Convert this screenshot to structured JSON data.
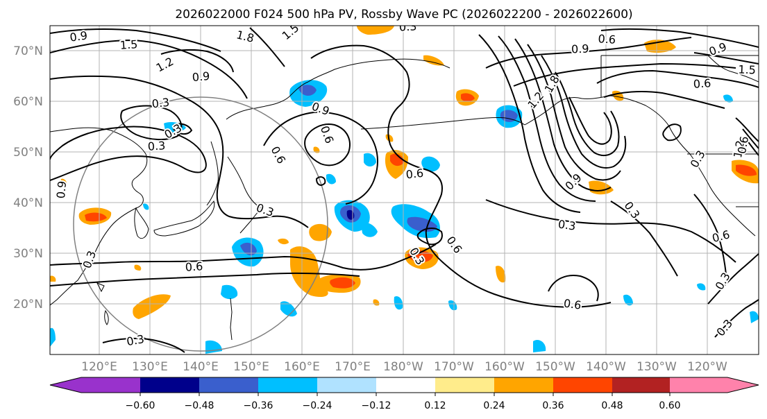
{
  "title": "2026022000 F024 500 hPa PV, Rossby Wave PC (2026022200 - 2026022600)",
  "lat_labels": [
    "70°N",
    "60°N",
    "50°N",
    "40°N",
    "30°N",
    "20°N"
  ],
  "lon_labels": [
    "120°E",
    "130°E",
    "140°E",
    "150°E",
    "160°E",
    "170°E",
    "180°W",
    "170°W",
    "160°W",
    "150°W",
    "140°W",
    "130°W",
    "120°W"
  ],
  "colorbar": {
    "ticks": [
      "−0.60",
      "−0.48",
      "−0.36",
      "−0.24",
      "−0.12",
      "0.12",
      "0.24",
      "0.36",
      "0.48",
      "0.60"
    ],
    "colors": [
      "#9932cc",
      "#00008b",
      "#3a5fcd",
      "#00bfff",
      "#b0e2ff",
      "#ffffff",
      "#ffec8b",
      "#ffa500",
      "#ff4500",
      "#b22222",
      "#ff82ab"
    ]
  },
  "contour_labels": [
    "0.9",
    "1.8",
    "1.5",
    "1.5",
    "1.2",
    "0.9",
    "0.3",
    "0.3",
    "0.3",
    "0.3",
    "0.9",
    "0.6",
    "0.9",
    "0.6",
    "0.3",
    "0.6",
    "0.3",
    "0.6",
    "0.9",
    "0.6",
    "1.5",
    "1.8",
    "1.2",
    "1.2",
    "0.9",
    "0.3",
    "0.3",
    "0.6",
    "0.3",
    "0.3",
    "0.3",
    "0.6",
    "0.6",
    "0.9",
    "0.6",
    "0.3",
    "0.6",
    "0.3"
  ]
}
